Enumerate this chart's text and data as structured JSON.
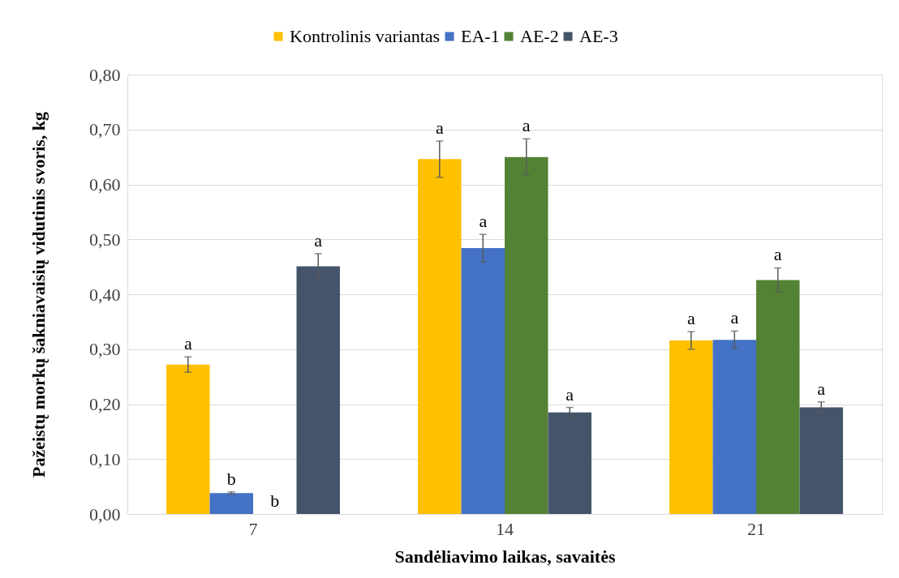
{
  "chart_data": {
    "type": "bar",
    "xlabel": "Sandėliavimo laikas, savaitės",
    "ylabel": "Pažeistų morkų šakniavaisių vidutinis svoris, kg",
    "categories": [
      "7",
      "14",
      "21"
    ],
    "series": [
      {
        "name": "Kontrolinis variantas",
        "color": "#ffc000",
        "values": [
          0.272,
          0.646,
          0.316
        ],
        "errors": [
          0.014,
          0.033,
          0.016
        ],
        "value_labels": [
          "a",
          "a",
          "a"
        ]
      },
      {
        "name": "EA-1",
        "color": "#4472c4",
        "values": [
          0.038,
          0.484,
          0.317
        ],
        "errors": [
          0.002,
          0.025,
          0.016
        ],
        "value_labels": [
          "b",
          "a",
          "a"
        ]
      },
      {
        "name": "AE-2",
        "color": "#548235",
        "values": [
          null,
          0.65,
          0.426
        ],
        "errors": [
          null,
          0.033,
          0.022
        ],
        "value_labels": [
          "b",
          "a",
          "a"
        ]
      },
      {
        "name": "AE-3",
        "color": "#44546a",
        "values": [
          0.451,
          0.185,
          0.194
        ],
        "errors": [
          0.023,
          0.009,
          0.01
        ],
        "value_labels": [
          "a",
          "a",
          "a"
        ]
      }
    ],
    "ylim": [
      0,
      0.8
    ],
    "yticks": [
      {
        "value": 0,
        "label": "0,00"
      },
      {
        "value": 0.1,
        "label": "0,10"
      },
      {
        "value": 0.2,
        "label": "0,20"
      },
      {
        "value": 0.3,
        "label": "0,30"
      },
      {
        "value": 0.4,
        "label": "0,40"
      },
      {
        "value": 0.5,
        "label": "0,50"
      },
      {
        "value": 0.6,
        "label": "0,60"
      },
      {
        "value": 0.7,
        "label": "0,70"
      },
      {
        "value": 0.8,
        "label": "0,80"
      }
    ],
    "grid": "y",
    "legend": "top"
  }
}
